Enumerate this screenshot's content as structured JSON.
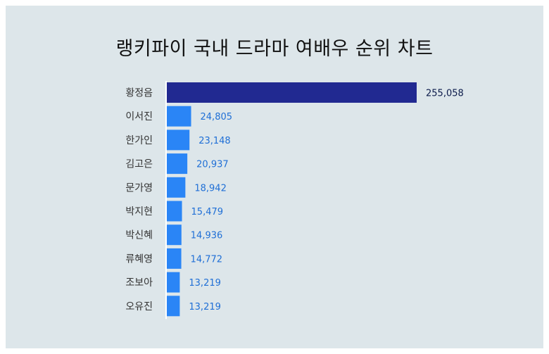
{
  "chart_data": {
    "type": "bar",
    "orientation": "horizontal",
    "title": "랭키파이 국내 드라마 여배우 순위 차트",
    "categories": [
      "황정음",
      "이서진",
      "한가인",
      "김고은",
      "문가영",
      "박지현",
      "박신혜",
      "류혜영",
      "조보아",
      "오유진"
    ],
    "values": [
      255058,
      24805,
      23148,
      20937,
      18942,
      15479,
      14936,
      14772,
      13219,
      13219
    ],
    "value_labels": [
      "255,058",
      "24,805",
      "23,148",
      "20,937",
      "18,942",
      "15,479",
      "14,936",
      "14,772",
      "13,219",
      "13,219"
    ],
    "xlabel": "",
    "ylabel": "",
    "grid": false,
    "legend": "none",
    "colors": {
      "top_bar": "#212991",
      "bar": "#2a85f6",
      "top_label": "#0b1a4a",
      "label": "#1f6fd6",
      "category_label": "#333333",
      "axis": "#ffffff",
      "background": "#dde6ea"
    }
  }
}
